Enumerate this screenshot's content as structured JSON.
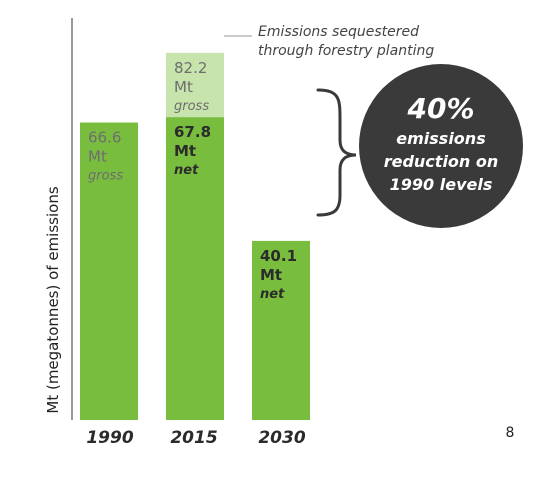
{
  "chart_data": {
    "type": "bar",
    "ylabel": "Mt (megatonnes) of emissions",
    "ylim": [
      0,
      90
    ],
    "grid": false,
    "categories": [
      "1990",
      "2015",
      "2030"
    ],
    "bars": [
      {
        "category": "1990",
        "value": 66.6,
        "value_text": "66.6",
        "unit": "Mt",
        "kind": "gross"
      },
      {
        "category": "2015",
        "value": 67.8,
        "value_text": "67.8",
        "unit": "Mt",
        "kind": "net",
        "stacked_top": {
          "value": 82.2,
          "value_text": "82.2",
          "unit": "Mt",
          "kind": "gross"
        }
      },
      {
        "category": "2030",
        "value": 40.1,
        "value_text": "40.1",
        "unit": "Mt",
        "kind": "net"
      }
    ],
    "annotation": {
      "line1": "Emissions sequestered",
      "line2": "through forestry planting"
    },
    "callout": {
      "line1": "40%",
      "line2": "emissions",
      "line3": "reduction on",
      "line4": "1990 levels"
    },
    "colors": {
      "bar": "#79bd3e",
      "sequestered": "#c7e4ad",
      "gross_text": "#6e6e6e",
      "net_text": "#2b2b2b",
      "circle": "#3a3a3a"
    }
  },
  "page_number": "8"
}
